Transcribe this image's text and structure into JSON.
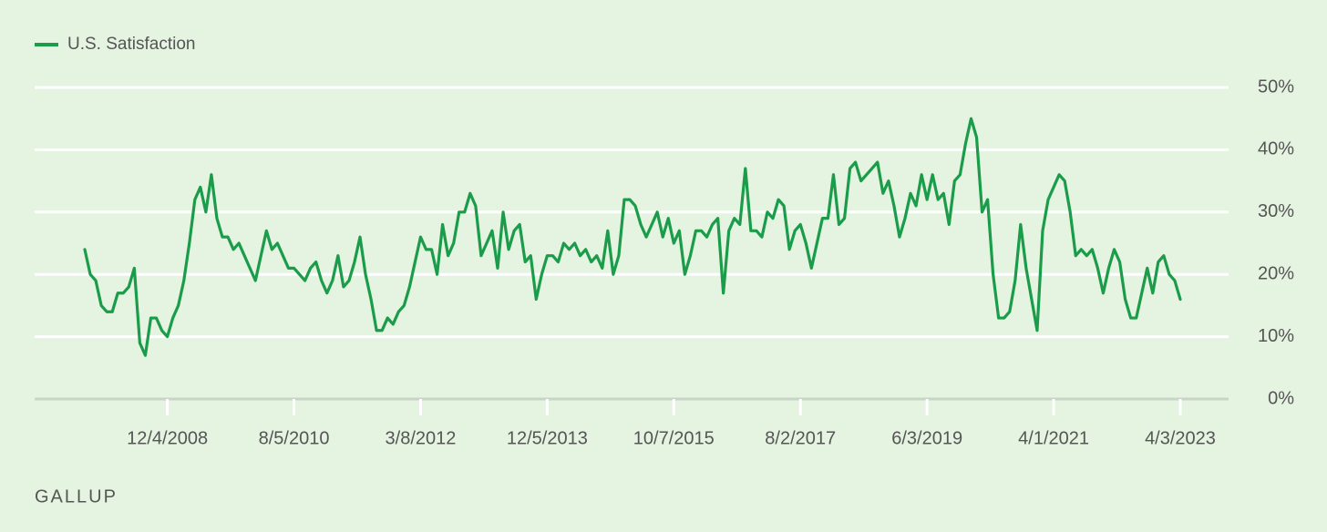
{
  "chart_data": {
    "type": "line",
    "legend": "top-left",
    "grid": true,
    "series": [
      {
        "name": "U.S. Satisfaction",
        "color": "#1a9c4a",
        "values": [
          24,
          20,
          19,
          15,
          14,
          14,
          17,
          17,
          18,
          21,
          9,
          7,
          13,
          13,
          11,
          10,
          13,
          15,
          19,
          25,
          32,
          34,
          30,
          36,
          29,
          26,
          26,
          24,
          25,
          23,
          21,
          19,
          23,
          27,
          24,
          25,
          23,
          21,
          21,
          20,
          19,
          21,
          22,
          19,
          17,
          19,
          23,
          18,
          19,
          22,
          26,
          20,
          16,
          11,
          11,
          13,
          12,
          14,
          15,
          18,
          22,
          26,
          24,
          24,
          20,
          28,
          23,
          25,
          30,
          30,
          33,
          31,
          23,
          25,
          27,
          21,
          30,
          24,
          27,
          28,
          22,
          23,
          16,
          20,
          23,
          23,
          22,
          25,
          24,
          25,
          23,
          24,
          22,
          23,
          21,
          27,
          20,
          23,
          32,
          32,
          31,
          28,
          26,
          28,
          30,
          26,
          29,
          25,
          27,
          20,
          23,
          27,
          27,
          26,
          28,
          29,
          17,
          27,
          29,
          28,
          37,
          27,
          27,
          26,
          30,
          29,
          32,
          31,
          24,
          27,
          28,
          25,
          21,
          25,
          29,
          29,
          36,
          28,
          29,
          37,
          38,
          35,
          36,
          37,
          38,
          33,
          35,
          31,
          26,
          29,
          33,
          31,
          36,
          32,
          36,
          32,
          33,
          28,
          35,
          36,
          41,
          45,
          42,
          30,
          32,
          20,
          13,
          13,
          14,
          19,
          28,
          21,
          16,
          11,
          27,
          32,
          34,
          36,
          35,
          30,
          23,
          24,
          23,
          24,
          21,
          17,
          21,
          24,
          22,
          16,
          13,
          13,
          17,
          21,
          17,
          22,
          23,
          20,
          19,
          16
        ]
      }
    ],
    "categories": [
      null,
      null,
      null,
      null,
      null,
      null,
      null,
      null,
      null,
      null,
      null,
      null,
      null,
      null,
      null,
      "12/4/2008",
      null,
      null,
      null,
      null,
      null,
      null,
      null,
      null,
      null,
      null,
      null,
      null,
      null,
      null,
      null,
      null,
      null,
      null,
      null,
      null,
      null,
      null,
      "8/5/2010",
      null,
      null,
      null,
      null,
      null,
      null,
      null,
      null,
      null,
      null,
      null,
      null,
      null,
      null,
      null,
      null,
      null,
      null,
      null,
      null,
      null,
      null,
      "3/8/2012",
      null,
      null,
      null,
      null,
      null,
      null,
      null,
      null,
      null,
      null,
      null,
      null,
      null,
      null,
      null,
      null,
      null,
      null,
      null,
      null,
      null,
      null,
      "12/5/2013",
      null,
      null,
      null,
      null,
      null,
      null,
      null,
      null,
      null,
      null,
      null,
      null,
      null,
      null,
      null,
      null,
      null,
      null,
      null,
      null,
      null,
      null,
      "10/7/2015",
      null,
      null,
      null,
      null,
      null,
      null,
      null,
      null,
      null,
      null,
      null,
      null,
      null,
      null,
      null,
      null,
      null,
      null,
      null,
      null,
      null,
      null,
      "8/2/2017",
      null,
      null,
      null,
      null,
      null,
      null,
      null,
      null,
      null,
      null,
      null,
      null,
      null,
      null,
      null,
      null,
      null,
      null,
      null,
      null,
      null,
      null,
      "6/3/2019",
      null,
      null,
      null,
      null,
      null,
      null,
      null,
      null,
      null,
      null,
      null,
      null,
      null,
      null,
      null,
      null,
      null,
      null,
      null,
      null,
      null,
      null,
      "4/1/2021",
      null,
      null,
      null,
      null,
      null,
      null,
      null,
      null,
      null,
      null,
      null,
      null,
      null,
      null,
      null,
      null,
      null,
      null,
      null,
      null,
      null,
      null,
      "4/3/2023"
    ],
    "ylim": [
      0,
      50
    ],
    "yticks": [
      {
        "value": 0,
        "label": "0%"
      },
      {
        "value": 10,
        "label": "10%"
      },
      {
        "value": 20,
        "label": "20%"
      },
      {
        "value": 30,
        "label": "30%"
      },
      {
        "value": 40,
        "label": "40%"
      },
      {
        "value": 50,
        "label": "50%"
      }
    ],
    "source": "GALLUP"
  }
}
